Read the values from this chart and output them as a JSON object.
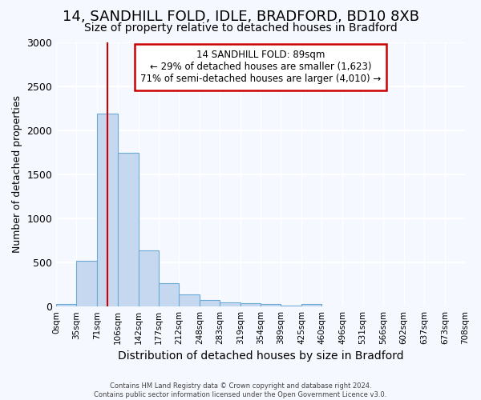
{
  "title": "14, SANDHILL FOLD, IDLE, BRADFORD, BD10 8XB",
  "subtitle": "Size of property relative to detached houses in Bradford",
  "xlabel": "Distribution of detached houses by size in Bradford",
  "ylabel": "Number of detached properties",
  "footer_line1": "Contains HM Land Registry data © Crown copyright and database right 2024.",
  "footer_line2": "Contains public sector information licensed under the Open Government Licence v3.0.",
  "annotation_line1": "14 SANDHILL FOLD: 89sqm",
  "annotation_line2": "← 29% of detached houses are smaller (1,623)",
  "annotation_line3": "71% of semi-detached houses are larger (4,010) →",
  "bar_edges": [
    0,
    35,
    71,
    106,
    142,
    177,
    212,
    248,
    283,
    319,
    354,
    389,
    425,
    460,
    496,
    531,
    566,
    602,
    637,
    673,
    708
  ],
  "bar_values": [
    25,
    520,
    2190,
    1740,
    635,
    265,
    140,
    75,
    50,
    40,
    30,
    10,
    30,
    5,
    5,
    5,
    5,
    5,
    5,
    5
  ],
  "bar_color": "#c5d8f0",
  "bar_edgecolor": "#6aaad4",
  "vline_x": 89,
  "vline_color": "#cc0000",
  "ylim": [
    0,
    3000
  ],
  "yticks": [
    0,
    500,
    1000,
    1500,
    2000,
    2500,
    3000
  ],
  "background_color": "#f5f8ff",
  "grid_color": "#ffffff",
  "annotation_box_edgecolor": "#cc0000",
  "annotation_box_facecolor": "#ffffff",
  "title_fontsize": 13,
  "subtitle_fontsize": 10,
  "ylabel_fontsize": 9,
  "xlabel_fontsize": 10
}
